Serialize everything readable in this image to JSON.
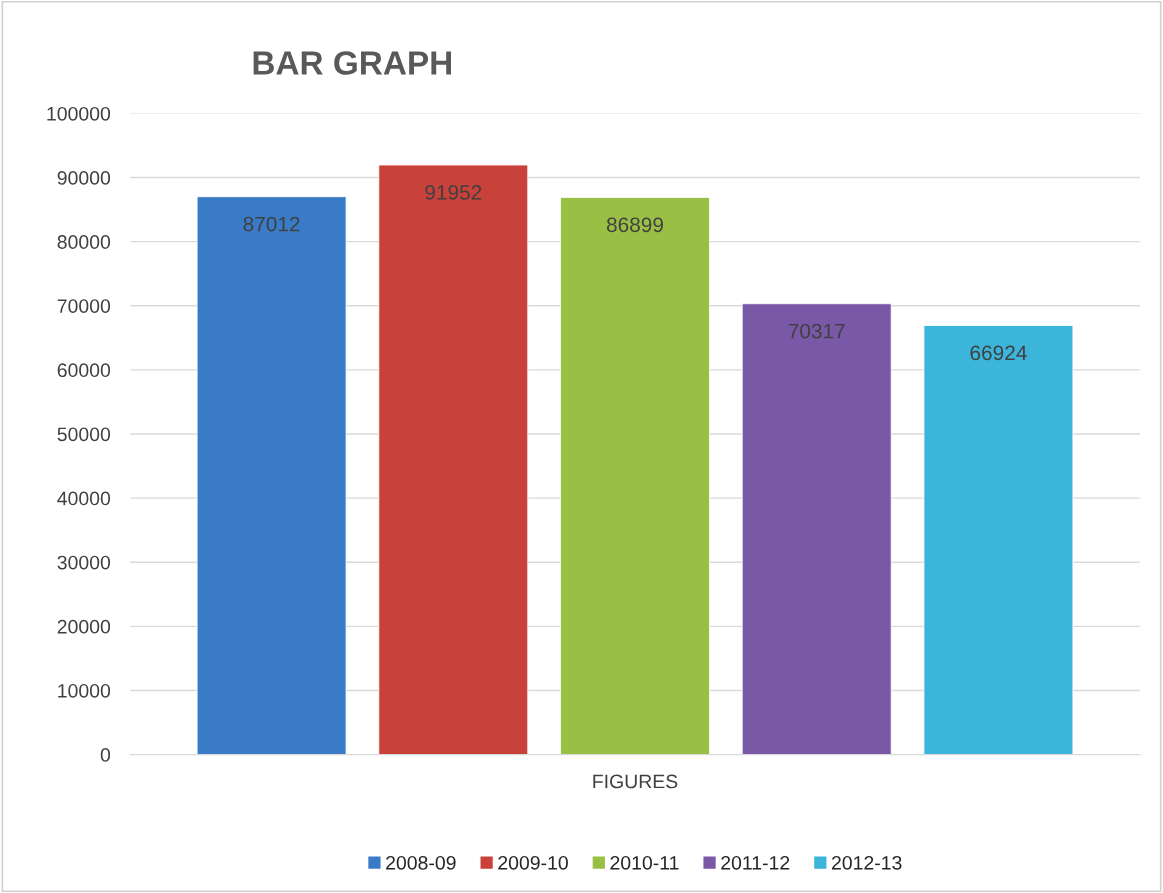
{
  "chart_data": {
    "type": "bar",
    "title": "BAR GRAPH",
    "categories": [
      "FIGURES"
    ],
    "series": [
      {
        "name": "2008-09",
        "color": "#3a7bc8",
        "values": [
          87012
        ]
      },
      {
        "name": "2009-10",
        "color": "#c8413b",
        "values": [
          91952
        ]
      },
      {
        "name": "2010-11",
        "color": "#99bf44",
        "values": [
          86899
        ]
      },
      {
        "name": "2011-12",
        "color": "#7a58a8",
        "values": [
          70317
        ]
      },
      {
        "name": "2012-13",
        "color": "#3bb5d9",
        "values": [
          66924
        ]
      }
    ],
    "ylim": [
      0,
      100000
    ],
    "yticks": [
      0,
      10000,
      20000,
      30000,
      40000,
      50000,
      60000,
      70000,
      80000,
      90000,
      100000
    ],
    "grid": "y",
    "legend": "bottom",
    "data_labels": true
  }
}
